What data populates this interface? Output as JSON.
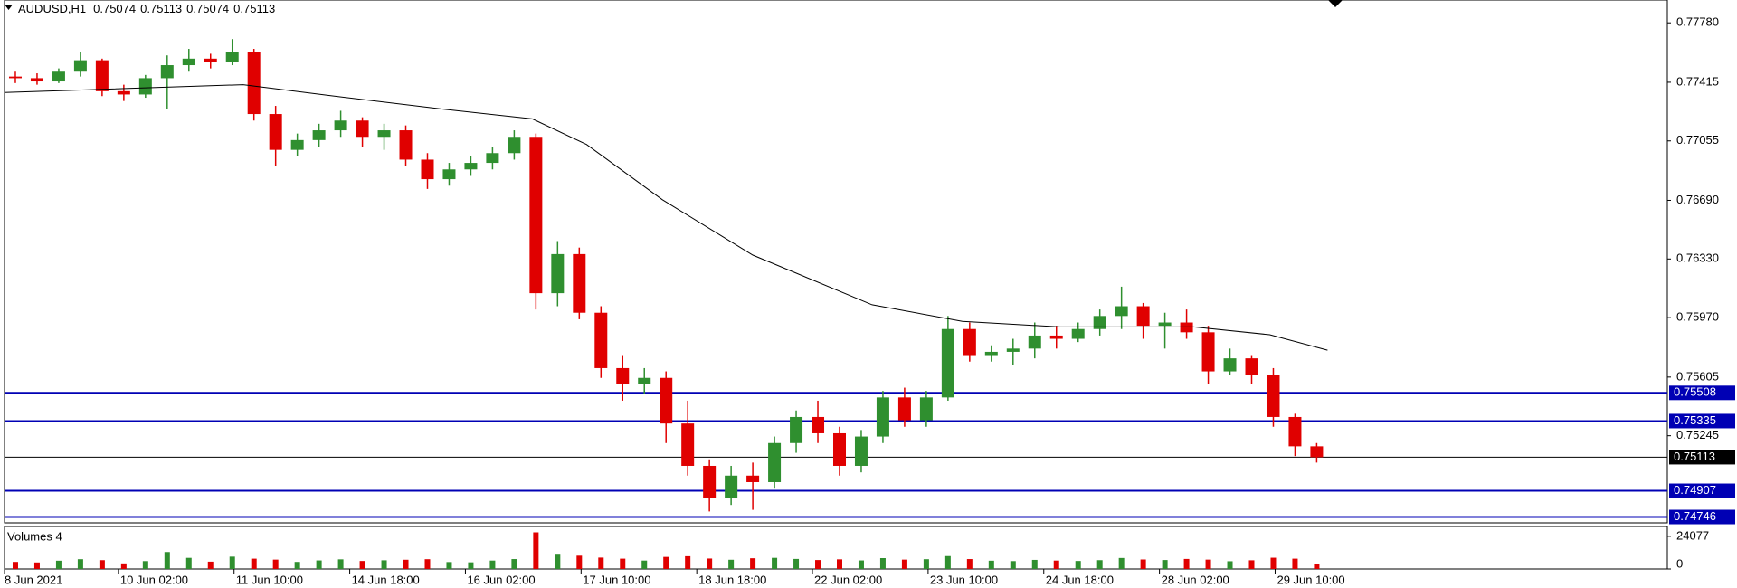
{
  "chart_data": {
    "type": "candlestick",
    "title": "AUDUSD,H1",
    "header_values": [
      0.75074,
      0.75113,
      0.75074,
      0.75113
    ],
    "x": [
      3,
      9,
      15,
      21,
      27,
      33,
      39,
      45,
      51,
      57,
      63,
      69,
      75,
      81,
      87,
      93,
      99,
      105,
      111,
      117,
      123,
      129,
      135,
      141,
      147,
      153,
      159,
      165,
      171,
      177,
      183,
      189,
      195,
      201,
      207,
      213,
      219,
      225,
      231,
      237,
      243,
      249,
      255,
      261,
      267,
      273,
      279,
      285,
      291,
      297,
      303,
      309,
      315,
      321,
      327,
      333,
      339,
      345,
      351,
      357,
      363
    ],
    "open": [
      0.7745,
      0.7744,
      0.7742,
      0.7748,
      0.7755,
      0.7736,
      0.7734,
      0.7744,
      0.7752,
      0.7756,
      0.7754,
      0.776,
      0.7722,
      0.77,
      0.7706,
      0.7712,
      0.7718,
      0.7708,
      0.7712,
      0.7694,
      0.7682,
      0.7688,
      0.7692,
      0.7698,
      0.7708,
      0.7612,
      0.7636,
      0.76,
      0.7566,
      0.7556,
      0.756,
      0.7532,
      0.7506,
      0.7486,
      0.75,
      0.7496,
      0.752,
      0.7536,
      0.7526,
      0.7506,
      0.7524,
      0.7548,
      0.7534,
      0.7548,
      0.759,
      0.7574,
      0.7576,
      0.7578,
      0.7586,
      0.7584,
      0.759,
      0.7598,
      0.7604,
      0.7592,
      0.7594,
      0.7588,
      0.7564,
      0.7572,
      0.7562,
      0.7536,
      0.7518
    ],
    "high": [
      0.7748,
      0.7747,
      0.775,
      0.776,
      0.7756,
      0.774,
      0.7746,
      0.7758,
      0.7762,
      0.7759,
      0.7768,
      0.7762,
      0.7727,
      0.771,
      0.7716,
      0.7724,
      0.772,
      0.7716,
      0.7715,
      0.7698,
      0.7692,
      0.7696,
      0.7702,
      0.7712,
      0.771,
      0.7644,
      0.764,
      0.7604,
      0.7574,
      0.7566,
      0.7564,
      0.7546,
      0.751,
      0.7506,
      0.7508,
      0.7524,
      0.754,
      0.7546,
      0.753,
      0.7528,
      0.7552,
      0.7554,
      0.7552,
      0.7598,
      0.7594,
      0.758,
      0.7584,
      0.7594,
      0.7592,
      0.7594,
      0.7602,
      0.7616,
      0.7606,
      0.76,
      0.7602,
      0.7592,
      0.7578,
      0.7574,
      0.7566,
      0.7538,
      0.752
    ],
    "low": [
      0.7741,
      0.774,
      0.7741,
      0.7745,
      0.7733,
      0.773,
      0.7732,
      0.7725,
      0.7748,
      0.775,
      0.7752,
      0.7718,
      0.769,
      0.7696,
      0.7702,
      0.7708,
      0.7702,
      0.77,
      0.769,
      0.7676,
      0.7678,
      0.7684,
      0.7688,
      0.7694,
      0.7602,
      0.7604,
      0.7596,
      0.756,
      0.7546,
      0.755,
      0.752,
      0.75,
      0.7478,
      0.7482,
      0.7479,
      0.7492,
      0.7514,
      0.752,
      0.75,
      0.7502,
      0.752,
      0.753,
      0.753,
      0.7546,
      0.757,
      0.757,
      0.7568,
      0.7572,
      0.7578,
      0.7582,
      0.7586,
      0.759,
      0.7584,
      0.7578,
      0.7584,
      0.7556,
      0.7562,
      0.7556,
      0.753,
      0.7512,
      0.7508
    ],
    "close": [
      0.7744,
      0.7742,
      0.7748,
      0.7755,
      0.7736,
      0.7734,
      0.7744,
      0.7752,
      0.7756,
      0.7754,
      0.776,
      0.7722,
      0.77,
      0.7706,
      0.7712,
      0.7718,
      0.7708,
      0.7712,
      0.7694,
      0.7682,
      0.7688,
      0.7692,
      0.7698,
      0.7708,
      0.7612,
      0.7636,
      0.76,
      0.7566,
      0.7556,
      0.756,
      0.7532,
      0.7506,
      0.7486,
      0.75,
      0.7496,
      0.752,
      0.7536,
      0.7526,
      0.7506,
      0.7524,
      0.7548,
      0.7534,
      0.7548,
      0.759,
      0.7574,
      0.7576,
      0.7578,
      0.7586,
      0.7584,
      0.759,
      0.7598,
      0.7604,
      0.7592,
      0.7594,
      0.7588,
      0.7564,
      0.7572,
      0.7562,
      0.7536,
      0.7518,
      0.75113
    ],
    "up_color": "#2f8f2f",
    "down_color": "#e00000",
    "xlim": [
      0,
      460
    ],
    "xticks": [
      {
        "value": 0,
        "label": "8 Jun 2021"
      },
      {
        "value": 31.5,
        "label": "10 Jun 02:00"
      },
      {
        "value": 63.5,
        "label": "11 Jun 10:00"
      },
      {
        "value": 95.5,
        "label": "14 Jun 18:00"
      },
      {
        "value": 127.5,
        "label": "16 Jun 02:00"
      },
      {
        "value": 159.5,
        "label": "17 Jun 10:00"
      },
      {
        "value": 191.5,
        "label": "18 Jun 18:00"
      },
      {
        "value": 223.5,
        "label": "22 Jun 02:00"
      },
      {
        "value": 255.5,
        "label": "23 Jun 10:00"
      },
      {
        "value": 287.5,
        "label": "24 Jun 18:00"
      },
      {
        "value": 319.5,
        "label": "28 Jun 02:00"
      },
      {
        "value": 351.5,
        "label": "29 Jun 10:00"
      }
    ],
    "ylim": [
      0.7471,
      0.7792
    ],
    "yticks": [
      {
        "value": 0.7778,
        "label": "0.77780"
      },
      0.77415,
      0.77055,
      {
        "value": 0.7669,
        "label": "0.76690"
      },
      {
        "value": 0.7633,
        "label": "0.76330"
      },
      {
        "value": 0.7597,
        "label": "0.75970"
      },
      0.75605,
      0.75245
    ],
    "ma": {
      "color": "#000000",
      "x": [
        0,
        29,
        66,
        90.5,
        121,
        146,
        161,
        182,
        207,
        240,
        265,
        292,
        329,
        350,
        366
      ],
      "values": [
        0.77352,
        0.77373,
        0.774,
        0.77332,
        0.77251,
        0.7719,
        0.77033,
        0.76694,
        0.76354,
        0.76049,
        0.75947,
        0.75913,
        0.75913,
        0.75865,
        0.7577
      ]
    },
    "levels": [
      {
        "value": 0.75508,
        "color": "#0000b4"
      },
      {
        "value": 0.75335,
        "color": "#0000b4"
      },
      {
        "value": 0.74907,
        "color": "#0000b4"
      },
      {
        "value": 0.74746,
        "color": "#0000b4"
      }
    ],
    "current_price": {
      "value": 0.75113,
      "color": "#000000"
    },
    "volume": {
      "title": "Volumes 4",
      "values": [
        5200,
        4800,
        6100,
        7200,
        6500,
        4100,
        5800,
        12500,
        8200,
        5400,
        9100,
        7600,
        6900,
        5200,
        6300,
        7100,
        5900,
        6400,
        6800,
        7200,
        5100,
        4900,
        6200,
        7300,
        27000,
        11200,
        9800,
        8400,
        7600,
        6200,
        8900,
        9400,
        7700,
        6800,
        7900,
        8200,
        7400,
        6600,
        7100,
        6300,
        8000,
        6900,
        7200,
        9500,
        7300,
        6100,
        5800,
        6700,
        6200,
        5900,
        6500,
        8100,
        7000,
        6600,
        7400,
        6900,
        5700,
        6400,
        8300,
        7600,
        3500
      ],
      "ylim": [
        0,
        30000
      ],
      "yticks": [
        24077,
        0
      ]
    }
  }
}
